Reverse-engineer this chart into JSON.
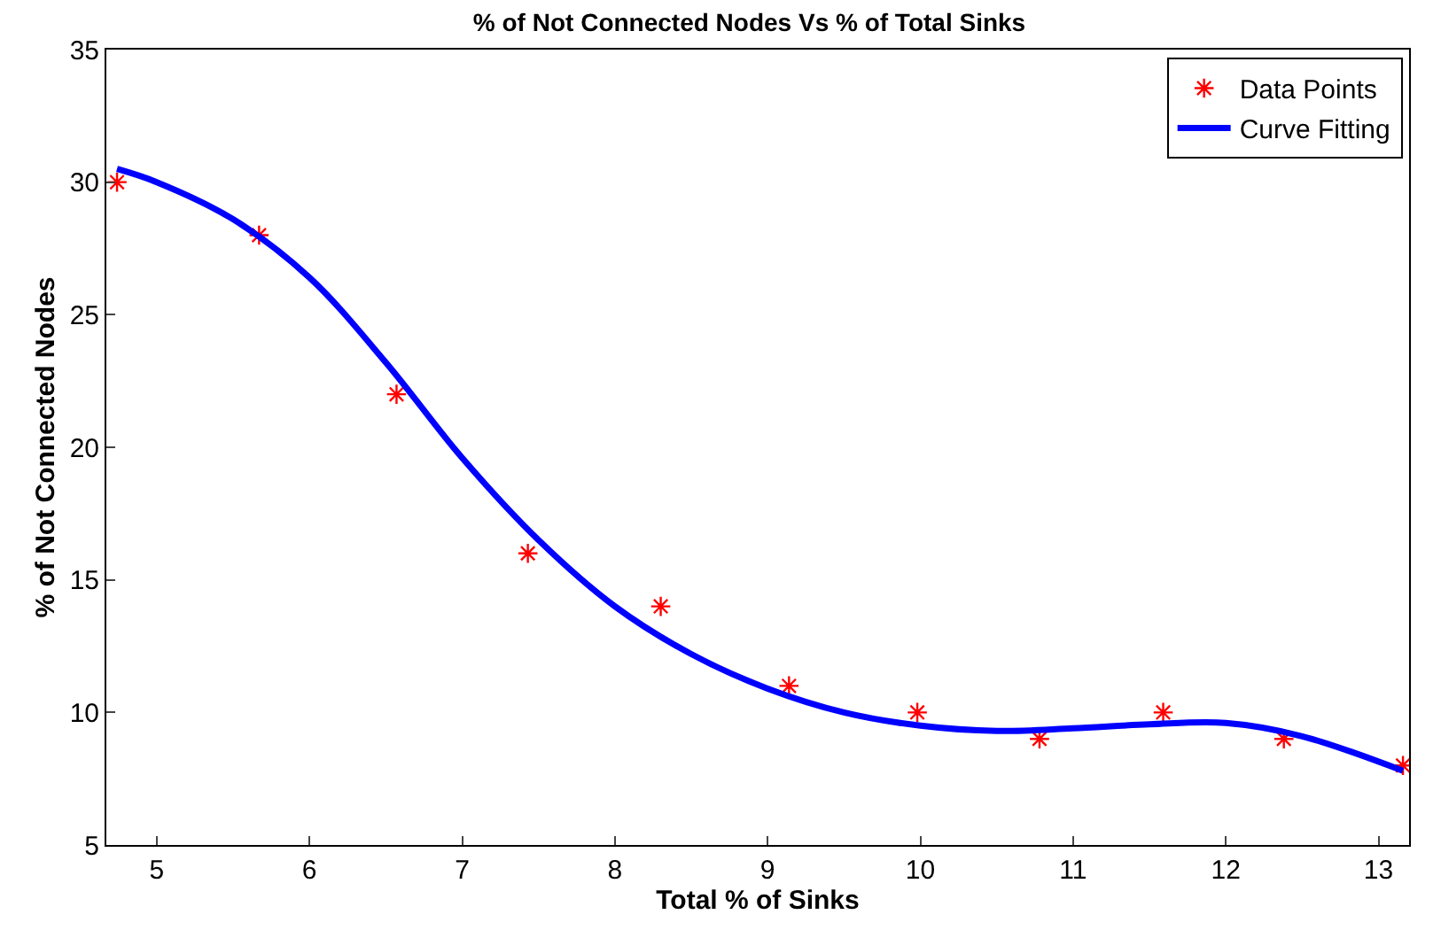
{
  "chart_data": {
    "type": "scatter",
    "title": "% of Not Connected Nodes Vs % of Total Sinks",
    "xlabel": "Total % of Sinks",
    "ylabel": "% of Not Connected Nodes",
    "xlim": [
      4.67,
      13.2
    ],
    "xticks": [
      5,
      6,
      7,
      8,
      9,
      10,
      11,
      12,
      13
    ],
    "ylim": [
      5,
      35
    ],
    "yticks": [
      5,
      10,
      15,
      20,
      25,
      30,
      35
    ],
    "legend": "top right",
    "series": [
      {
        "name": "Data Points",
        "marker": "cross",
        "color": "#ff0000",
        "x": [
          4.74,
          5.67,
          6.57,
          7.43,
          8.3,
          9.14,
          9.98,
          10.78,
          11.59,
          12.38,
          13.16
        ],
        "values": [
          30,
          28,
          22,
          16,
          14,
          11,
          10,
          9,
          10,
          9,
          8
        ]
      },
      {
        "name": "Curve Fitting",
        "type": "line",
        "marker": "none",
        "line_style": "solid",
        "color": "#0000ff",
        "x": [
          4.74,
          5.0,
          5.5,
          6.0,
          6.5,
          7.0,
          7.5,
          8.0,
          8.5,
          9.0,
          9.5,
          10.0,
          10.5,
          11.0,
          11.5,
          12.0,
          12.5,
          13.16
        ],
        "values": [
          30.5,
          30.0,
          28.6,
          26.4,
          23.2,
          19.6,
          16.5,
          14.0,
          12.2,
          10.9,
          10.0,
          9.5,
          9.3,
          9.4,
          9.55,
          9.6,
          9.1,
          7.8
        ]
      }
    ]
  }
}
